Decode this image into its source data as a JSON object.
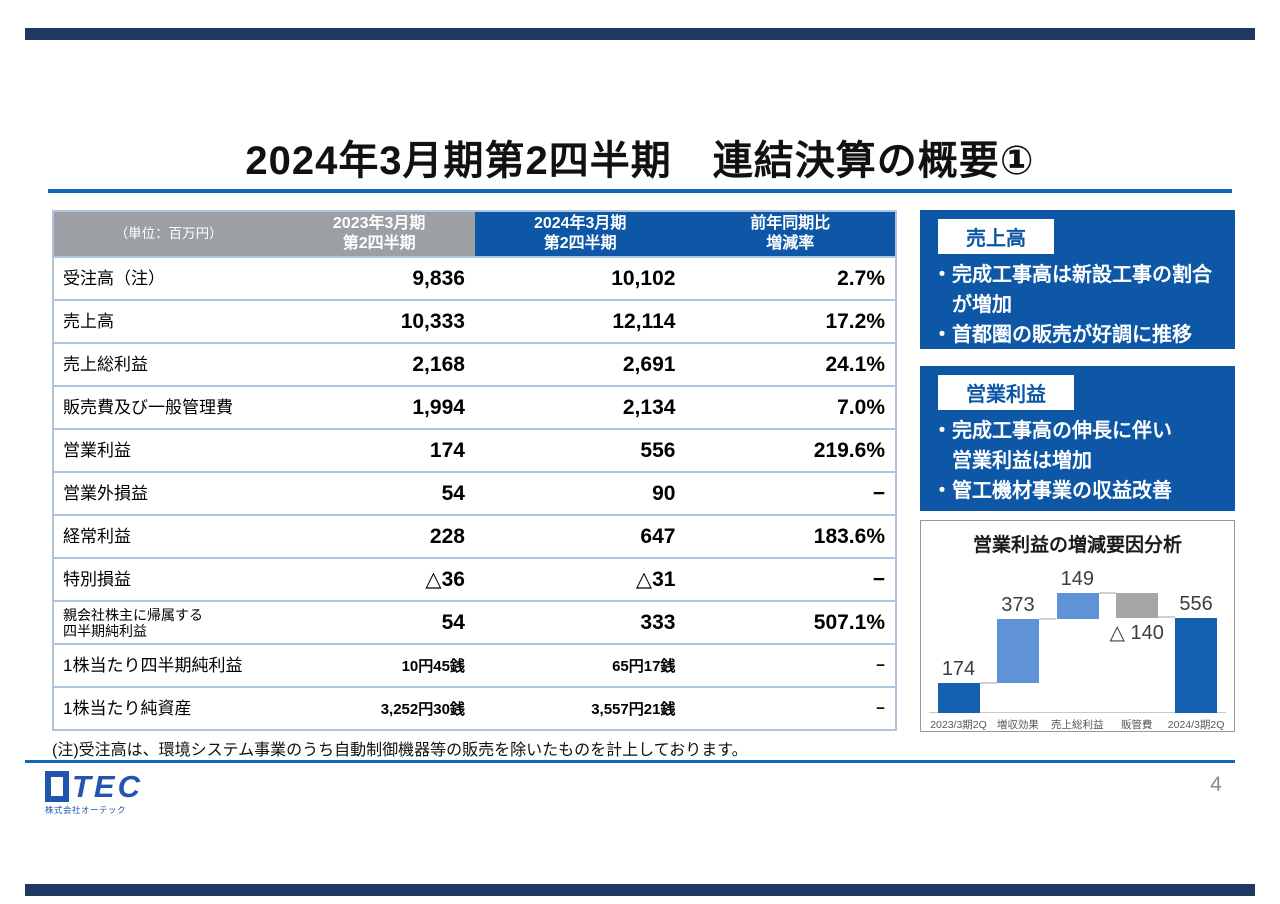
{
  "page": {
    "title": "2024年3月期第2四半期　連結決算の概要①",
    "footnote": "(注)受注高は、環境システム事業のうち自動制御機器等の販売を除いたものを計上しております。",
    "page_number": "4"
  },
  "colors": {
    "accent_blue": "#1668b3",
    "navy_bar": "#203864",
    "header_blue": "#0d57a6",
    "header_gray": "#9c9fa3",
    "row_border": "#adc5e0",
    "box_blue": "#0d57a6",
    "box_label_text": "#0d57a6",
    "wf_total": "#1660b2",
    "wf_increase": "#6093d6",
    "wf_decrease": "#a6a6a6"
  },
  "table": {
    "unit_label": "（単位：百万円）",
    "headers": [
      {
        "lines": [
          "2023年3月期",
          "第2四半期"
        ],
        "tone": "gray"
      },
      {
        "lines": [
          "2024年3月期",
          "第2四半期"
        ],
        "tone": "blue"
      },
      {
        "lines": [
          "前年同期比",
          "増減率"
        ],
        "tone": "blue"
      }
    ],
    "rows": [
      {
        "label_lines": [
          "受注高（注）"
        ],
        "values": [
          "9,836",
          "10,102",
          "2.7%"
        ]
      },
      {
        "label_lines": [
          "売上高"
        ],
        "values": [
          "10,333",
          "12,114",
          "17.2%"
        ]
      },
      {
        "label_lines": [
          "売上総利益"
        ],
        "values": [
          "2,168",
          "2,691",
          "24.1%"
        ]
      },
      {
        "label_lines": [
          "販売費及び一般管理費"
        ],
        "values": [
          "1,994",
          "2,134",
          "7.0%"
        ]
      },
      {
        "label_lines": [
          "営業利益"
        ],
        "values": [
          "174",
          "556",
          "219.6%"
        ]
      },
      {
        "label_lines": [
          "営業外損益"
        ],
        "values": [
          "54",
          "90",
          "−"
        ]
      },
      {
        "label_lines": [
          "経常利益"
        ],
        "values": [
          "228",
          "647",
          "183.6%"
        ]
      },
      {
        "label_lines": [
          "特別損益"
        ],
        "values": [
          "△36",
          "△31",
          "−"
        ]
      },
      {
        "label_lines": [
          "親会社株主に帰属する",
          "四半期純利益"
        ],
        "values": [
          "54",
          "333",
          "507.1%"
        ],
        "label_small": true
      },
      {
        "label_lines": [
          "1株当たり四半期純利益"
        ],
        "values": [
          "10円45銭",
          "65円17銭",
          "−"
        ],
        "small": true
      },
      {
        "label_lines": [
          "1株当たり純資産"
        ],
        "values": [
          "3,252円30銭",
          "3,557円21銭",
          "−"
        ],
        "small": true
      }
    ]
  },
  "highlight_boxes": [
    {
      "title": "売上高",
      "lines": [
        "・完成工事高は新設工事の割合",
        "　が増加",
        "・首都圏の販売が好調に推移"
      ]
    },
    {
      "title": "営業利益",
      "lines": [
        "・完成工事高の伸長に伴い",
        "　営業利益は増加",
        "・管工機材事業の収益改善"
      ]
    }
  ],
  "chart_data": {
    "type": "bar",
    "subtype": "waterfall",
    "title": "営業利益の増減要因分析",
    "categories": [
      "2023/3期2Q",
      "増収効果",
      "売上総利益",
      "販管費",
      "2024/3期2Q"
    ],
    "values": [
      174,
      373,
      149,
      -140,
      556
    ],
    "bars": [
      {
        "category": "2023/3期2Q",
        "label": "174",
        "start": 0,
        "end": 174,
        "role": "total",
        "label_pos": "above"
      },
      {
        "category": "増収効果",
        "label": "373",
        "start": 174,
        "end": 547,
        "role": "increase",
        "label_pos": "above"
      },
      {
        "category": "売上総利益",
        "label": "149",
        "start": 547,
        "end": 696,
        "role": "increase",
        "label_pos": "above"
      },
      {
        "category": "販管費",
        "label": "△ 140",
        "start": 696,
        "end": 556,
        "role": "decrease",
        "label_pos": "below"
      },
      {
        "category": "2024/3期2Q",
        "label": "556",
        "start": 0,
        "end": 556,
        "role": "total",
        "label_pos": "above"
      }
    ],
    "ylim": [
      0,
      850
    ],
    "grid": false,
    "legend": false
  },
  "logo": {
    "name": "TEC",
    "full_name": "OTEC",
    "subtext": "株式会社オーテック"
  }
}
